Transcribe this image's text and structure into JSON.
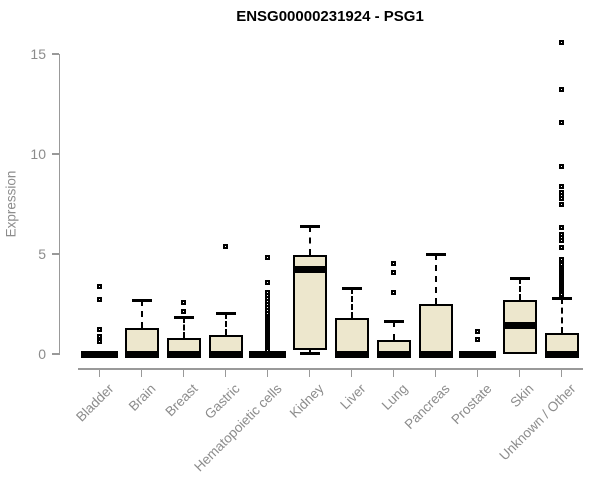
{
  "title": "ENSG00000231924 - PSG1",
  "chart_data": {
    "type": "boxplot",
    "title": "ENSG00000231924 - PSG1",
    "xlabel": "",
    "ylabel": "Expression",
    "ylim": [
      0,
      15.6
    ],
    "yticks": [
      0,
      5,
      10,
      15
    ],
    "grid": false,
    "legend": false,
    "colors": {
      "box_fill": "#EDE7CD",
      "box_stroke": "#000000",
      "axis": "#999999",
      "axis_text": "#8C8C8C",
      "title_text": "#000000"
    },
    "categories": [
      "Bladder",
      "Brain",
      "Breast",
      "Gastric",
      "Hematopoietic cells",
      "Kidney",
      "Liver",
      "Lung",
      "Pancreas",
      "Prostate",
      "Skin",
      "Unknown / Other"
    ],
    "series": [
      {
        "name": "Bladder",
        "q1": 0,
        "median": 0,
        "q3": 0,
        "whisker_low": 0,
        "whisker_high": 0,
        "outliers": [
          3.35,
          2.7,
          1.2,
          0.85,
          0.6
        ]
      },
      {
        "name": "Brain",
        "q1": 0,
        "median": 0,
        "q3": 1.3,
        "whisker_low": 0,
        "whisker_high": 2.7,
        "outliers": []
      },
      {
        "name": "Breast",
        "q1": 0,
        "median": 0,
        "q3": 0.8,
        "whisker_low": 0,
        "whisker_high": 1.85,
        "outliers": [
          2.55,
          2.1
        ]
      },
      {
        "name": "Gastric",
        "q1": 0,
        "median": 0,
        "q3": 0.95,
        "whisker_low": 0,
        "whisker_high": 2.05,
        "outliers": [
          5.35
        ]
      },
      {
        "name": "Hematopoietic cells",
        "q1": 0,
        "median": 0,
        "q3": 0,
        "whisker_low": 0,
        "whisker_high": 0,
        "outliers": [
          4.8,
          3.55,
          3.05,
          2.9,
          2.75,
          2.6,
          2.45,
          2.3,
          2.15,
          2.0,
          1.85,
          1.75,
          1.65,
          1.55,
          1.45,
          1.35,
          1.25,
          1.15,
          1.05,
          0.95,
          0.85,
          0.75,
          0.65,
          0.55,
          0.45,
          0.35,
          0.25,
          0.15
        ]
      },
      {
        "name": "Kidney",
        "q1": 0.2,
        "median": 4.25,
        "q3": 4.95,
        "whisker_low": 0.05,
        "whisker_high": 6.4,
        "outliers": []
      },
      {
        "name": "Liver",
        "q1": 0,
        "median": 0,
        "q3": 1.8,
        "whisker_low": 0,
        "whisker_high": 3.3,
        "outliers": []
      },
      {
        "name": "Lung",
        "q1": 0,
        "median": 0,
        "q3": 0.7,
        "whisker_low": 0,
        "whisker_high": 1.65,
        "outliers": [
          4.5,
          4.05,
          3.05
        ]
      },
      {
        "name": "Pancreas",
        "q1": 0,
        "median": 0,
        "q3": 2.5,
        "whisker_low": 0,
        "whisker_high": 5.0,
        "outliers": []
      },
      {
        "name": "Prostate",
        "q1": 0,
        "median": 0,
        "q3": 0,
        "whisker_low": 0,
        "whisker_high": 0,
        "outliers": [
          1.1,
          0.7
        ]
      },
      {
        "name": "Skin",
        "q1": 0,
        "median": 1.45,
        "q3": 2.7,
        "whisker_low": 0,
        "whisker_high": 3.8,
        "outliers": []
      },
      {
        "name": "Unknown / Other",
        "q1": 0,
        "median": 0,
        "q3": 1.05,
        "whisker_low": 0,
        "whisker_high": 2.8,
        "outliers": [
          15.55,
          13.2,
          11.55,
          9.35,
          8.35,
          8.05,
          7.9,
          7.75,
          7.45,
          6.3,
          5.95,
          5.8,
          5.65,
          5.3,
          4.7,
          4.45,
          4.3,
          4.2,
          4.1,
          4.0,
          3.9,
          3.8,
          3.7,
          3.6,
          3.5,
          3.4,
          3.3,
          3.2,
          3.1,
          3.0,
          2.95
        ]
      }
    ]
  }
}
